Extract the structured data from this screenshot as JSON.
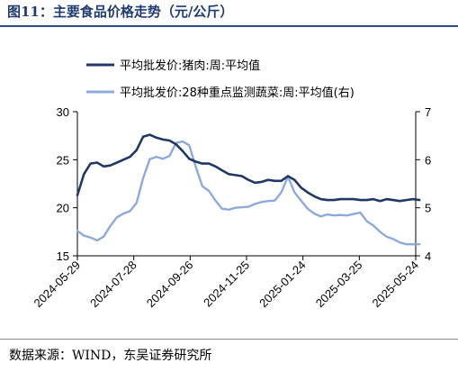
{
  "figure": {
    "title": "图11：主要食品价格走势（元/公斤）",
    "source": "数据来源：WIND，东吴证券研究所"
  },
  "chart_data": {
    "type": "line",
    "title": "图11：主要食品价格走势（元/公斤）",
    "x_tick_labels": [
      "2024-05-29",
      "2024-07-28",
      "2024-09-26",
      "2024-11-25",
      "2025-01-24",
      "2025-03-25",
      "2025-05-24"
    ],
    "y_left": {
      "ylim": [
        15,
        30
      ],
      "ticks": [
        15,
        20,
        25,
        30
      ]
    },
    "y_right": {
      "ylim": [
        4,
        7
      ],
      "ticks": [
        4,
        5,
        6,
        7
      ]
    },
    "grid": false,
    "legend_position": "top-left",
    "series": [
      {
        "name": "平均批发价:猪肉:周:平均值",
        "axis": "left",
        "color": "#1f3864",
        "x": [
          "2024-05-29",
          "2024-06-05",
          "2024-06-12",
          "2024-06-19",
          "2024-06-26",
          "2024-07-03",
          "2024-07-10",
          "2024-07-17",
          "2024-07-24",
          "2024-07-31",
          "2024-08-07",
          "2024-08-14",
          "2024-08-21",
          "2024-08-28",
          "2024-09-04",
          "2024-09-11",
          "2024-09-18",
          "2024-09-25",
          "2024-10-02",
          "2024-10-09",
          "2024-10-16",
          "2024-10-23",
          "2024-10-30",
          "2024-11-06",
          "2024-11-13",
          "2024-11-20",
          "2024-11-27",
          "2024-12-04",
          "2024-12-11",
          "2024-12-18",
          "2024-12-25",
          "2025-01-01",
          "2025-01-08",
          "2025-01-15",
          "2025-01-22",
          "2025-01-29",
          "2025-02-05",
          "2025-02-12",
          "2025-02-19",
          "2025-02-26",
          "2025-03-05",
          "2025-03-12",
          "2025-03-19",
          "2025-03-26",
          "2025-04-02",
          "2025-04-09",
          "2025-04-16",
          "2025-04-23",
          "2025-04-30",
          "2025-05-07",
          "2025-05-14",
          "2025-05-21",
          "2025-05-28"
        ],
        "values": [
          21.3,
          23.5,
          24.6,
          24.7,
          24.3,
          24.4,
          24.7,
          25.0,
          25.3,
          26.0,
          27.4,
          27.6,
          27.3,
          27.1,
          27.0,
          26.6,
          25.9,
          25.1,
          24.8,
          24.6,
          24.6,
          24.3,
          23.9,
          23.5,
          23.4,
          23.3,
          22.9,
          22.6,
          22.7,
          22.9,
          22.8,
          22.8,
          23.3,
          22.9,
          22.1,
          21.6,
          21.2,
          20.9,
          20.8,
          20.8,
          20.9,
          20.9,
          20.9,
          20.8,
          20.8,
          20.9,
          20.7,
          20.9,
          20.8,
          20.7,
          20.8,
          20.9,
          20.8
        ]
      },
      {
        "name": "平均批发价:28种重点监测蔬菜:周:平均值(右)",
        "axis": "right",
        "color": "#8eaadb",
        "x": [
          "2024-05-29",
          "2024-06-05",
          "2024-06-12",
          "2024-06-19",
          "2024-06-26",
          "2024-07-03",
          "2024-07-10",
          "2024-07-17",
          "2024-07-24",
          "2024-07-31",
          "2024-08-07",
          "2024-08-14",
          "2024-08-21",
          "2024-08-28",
          "2024-09-04",
          "2024-09-11",
          "2024-09-18",
          "2024-09-25",
          "2024-10-02",
          "2024-10-09",
          "2024-10-16",
          "2024-10-23",
          "2024-10-30",
          "2024-11-06",
          "2024-11-13",
          "2024-11-20",
          "2024-11-27",
          "2024-12-04",
          "2024-12-11",
          "2024-12-18",
          "2024-12-25",
          "2025-01-01",
          "2025-01-08",
          "2025-01-15",
          "2025-01-22",
          "2025-01-29",
          "2025-02-05",
          "2025-02-12",
          "2025-02-19",
          "2025-02-26",
          "2025-03-05",
          "2025-03-12",
          "2025-03-19",
          "2025-03-26",
          "2025-04-02",
          "2025-04-09",
          "2025-04-16",
          "2025-04-23",
          "2025-04-30",
          "2025-05-07",
          "2025-05-14",
          "2025-05-21",
          "2025-05-28"
        ],
        "values": [
          4.52,
          4.42,
          4.38,
          4.32,
          4.4,
          4.62,
          4.8,
          4.88,
          4.93,
          5.1,
          5.62,
          6.01,
          6.06,
          6.02,
          6.08,
          6.35,
          6.38,
          6.3,
          5.85,
          5.45,
          5.35,
          5.15,
          4.98,
          4.96,
          5.0,
          5.01,
          5.02,
          5.08,
          5.12,
          5.14,
          5.15,
          5.32,
          5.65,
          5.32,
          5.15,
          4.98,
          4.88,
          4.82,
          4.86,
          4.84,
          4.85,
          4.84,
          4.87,
          4.9,
          4.72,
          4.63,
          4.5,
          4.4,
          4.35,
          4.28,
          4.24,
          4.24,
          4.24
        ]
      }
    ]
  }
}
